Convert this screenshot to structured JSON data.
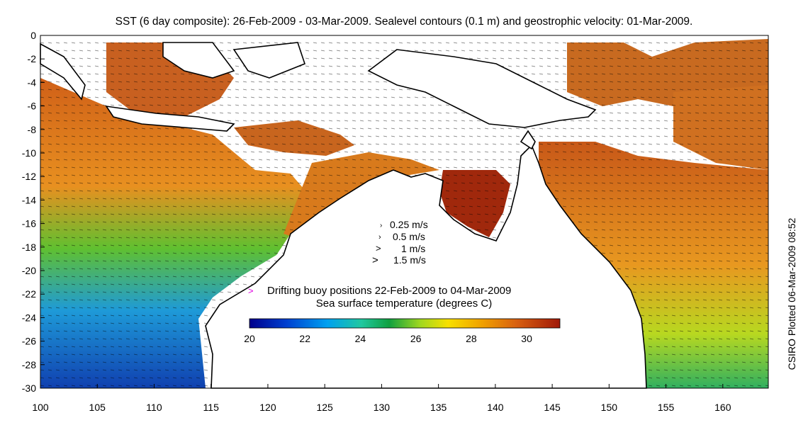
{
  "title": "SST (6 day composite): 26-Feb-2009 - 03-Mar-2009. Sealevel contours (0.1 m) and geostrophic velocity: 01-Mar-2009.",
  "side_label": "CSIRO Plotted 06-Mar-2009 08:52",
  "x_ticks": [
    "100",
    "105",
    "110",
    "115",
    "120",
    "125",
    "130",
    "135",
    "140",
    "145",
    "150",
    "155",
    "160"
  ],
  "y_ticks": [
    "0",
    "-2",
    "-4",
    "-6",
    "-8",
    "-10",
    "-12",
    "-14",
    "-16",
    "-18",
    "-20",
    "-22",
    "-24",
    "-26",
    "-28",
    "-30"
  ],
  "velocity_legend": [
    "0.25 m/s",
    "0.5 m/s",
    "1 m/s",
    "1.5 m/s"
  ],
  "buoy_legend": "Drifting buoy positions 22-Feb-2009 to 04-Mar-2009",
  "colorbar_title": "Sea surface temperature (degrees C)",
  "colorbar_ticks": [
    "20",
    "22",
    "24",
    "26",
    "28",
    "30"
  ],
  "colors": {
    "ocean_warm": "#c0501a",
    "ocean_hot": "#a02a0a",
    "ocean_mid": "#e8a020",
    "ocean_green": "#3cb43c",
    "ocean_cool": "#1e78d2",
    "land": "#ffffff",
    "coast": "#000000",
    "buoy": "#e000e0"
  }
}
